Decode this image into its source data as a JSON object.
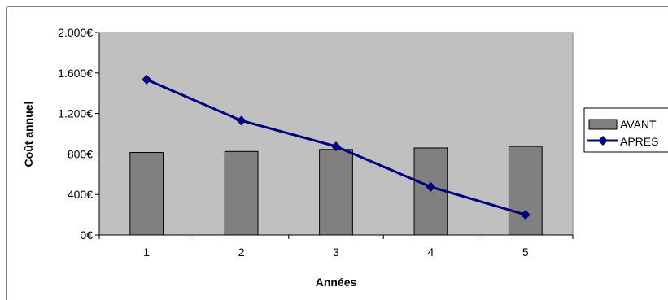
{
  "chart_data": {
    "type": "bar",
    "title": "",
    "xlabel": "Années",
    "ylabel": "Coût annuel",
    "categories": [
      "1",
      "2",
      "3",
      "4",
      "5"
    ],
    "ylim": [
      0,
      2000
    ],
    "yticks": [
      0,
      400,
      800,
      1200,
      1600,
      2000
    ],
    "ytick_labels": [
      "0€",
      "400€",
      "800€",
      "1.200€",
      "1.600€",
      "2.000€"
    ],
    "grid": false,
    "legend_position": "right",
    "series": [
      {
        "name": "AVANT",
        "type": "bar",
        "color": "#808080",
        "values": [
          815,
          825,
          845,
          860,
          875
        ]
      },
      {
        "name": "APRES",
        "type": "line",
        "color": "#000080",
        "values": [
          1535,
          1130,
          875,
          475,
          200
        ]
      }
    ],
    "plot_background": "#c0c0c0"
  }
}
